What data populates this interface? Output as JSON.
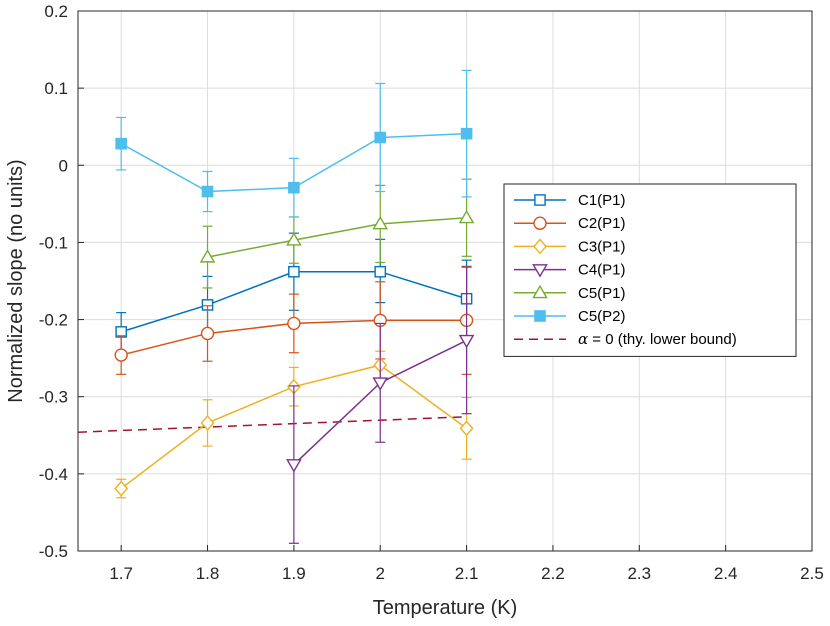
{
  "chart_data": {
    "type": "line",
    "xlabel": "Temperature (K)",
    "ylabel": "Normalized slope (no units)",
    "xlim": [
      1.65,
      2.5
    ],
    "ylim": [
      -0.5,
      0.2
    ],
    "xticks": [
      1.7,
      1.8,
      1.9,
      2.0,
      2.1,
      2.2,
      2.3,
      2.4,
      2.5
    ],
    "xtick_labels": [
      "1.7",
      "1.8",
      "1.9",
      "2",
      "2.1",
      "2.2",
      "2.3",
      "2.4",
      "2.5"
    ],
    "yticks": [
      0.2,
      0.1,
      0,
      -0.1,
      -0.2,
      -0.3,
      -0.4,
      -0.5
    ],
    "ytick_labels": [
      "0.2",
      "0.1",
      "0",
      "-0.1",
      "-0.2",
      "-0.3",
      "-0.4",
      "-0.5"
    ],
    "grid": true,
    "legend_position": "right",
    "series": [
      {
        "name": "C1(P1)",
        "color": "#0072BD",
        "marker": "square",
        "x": [
          1.7,
          1.8,
          1.9,
          2.0,
          2.1
        ],
        "y": [
          -0.216,
          -0.181,
          -0.138,
          -0.138,
          -0.173
        ],
        "err_low": [
          0.025,
          0.037,
          0.05,
          0.04,
          0.05
        ],
        "err_high": [
          0.025,
          0.037,
          0.05,
          0.042,
          0.05
        ]
      },
      {
        "name": "C2(P1)",
        "color": "#D95319",
        "marker": "circle",
        "x": [
          1.7,
          1.8,
          1.9,
          2.0,
          2.1
        ],
        "y": [
          -0.246,
          -0.218,
          -0.205,
          -0.201,
          -0.201
        ],
        "err_low": [
          0.025,
          0.036,
          0.038,
          0.05,
          0.07
        ],
        "err_high": [
          0.025,
          0.036,
          0.038,
          0.05,
          0.07
        ]
      },
      {
        "name": "C3(P1)",
        "color": "#EDB120",
        "marker": "diamond",
        "x": [
          1.7,
          1.8,
          1.9,
          2.0,
          2.1
        ],
        "y": [
          -0.419,
          -0.334,
          -0.287,
          -0.259,
          -0.341
        ],
        "err_low": [
          0.012,
          0.03,
          0.025,
          0.018,
          0.04
        ],
        "err_high": [
          0.012,
          0.03,
          0.025,
          0.018,
          0.04
        ]
      },
      {
        "name": "C4(P1)",
        "color": "#7E2F8E",
        "marker": "triangle-down",
        "x": [
          1.9,
          2.0,
          2.1
        ],
        "y": [
          -0.388,
          -0.282,
          -0.227
        ],
        "err_low": [
          0.102,
          0.077,
          0.095
        ],
        "err_high": [
          0.102,
          0.077,
          0.095
        ]
      },
      {
        "name": "C5(P1)",
        "color": "#77AC30",
        "marker": "triangle-up",
        "x": [
          1.8,
          1.9,
          2.0,
          2.1
        ],
        "y": [
          -0.119,
          -0.097,
          -0.076,
          -0.068
        ],
        "err_low": [
          0.04,
          0.03,
          0.05,
          0.05
        ],
        "err_high": [
          0.04,
          0.03,
          0.05,
          0.05
        ]
      },
      {
        "name": "C5(P2)",
        "color": "#4DBEEE",
        "marker": "filled-square",
        "x": [
          1.7,
          1.8,
          1.9,
          2.0,
          2.1
        ],
        "y": [
          0.028,
          -0.034,
          -0.029,
          0.036,
          0.041
        ],
        "err_low": [
          0.034,
          0.026,
          0.038,
          0.07,
          0.082
        ],
        "err_high": [
          0.034,
          0.026,
          0.038,
          0.07,
          0.082
        ]
      }
    ],
    "reference_line": {
      "label_prefix": "α",
      "label_suffix": " = 0 (thy. lower bound)",
      "color": "#A2142F",
      "style": "dashed",
      "x": [
        1.65,
        2.1
      ],
      "y": [
        -0.346,
        -0.326
      ]
    }
  }
}
